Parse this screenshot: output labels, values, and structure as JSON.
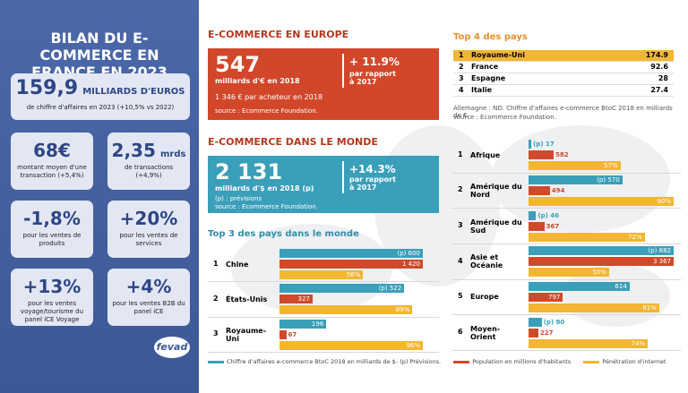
{
  "france": {
    "title": "BILAN DU E-COMMERCE EN FRANCE EN 2023",
    "cards": [
      {
        "value": "159,9",
        "unit": "MILLIARDS D'EUROS",
        "text": "de chiffre d'affaires en 2023 (+10,5% vs 2022)"
      },
      {
        "value": "68€",
        "text": "montant moyen d'une transaction (+5,4%)"
      },
      {
        "value": "2,35",
        "unit": "mrds",
        "text": "de transactions (+4,9%)"
      },
      {
        "value": "-1,8%",
        "text": "pour les ventes de produits"
      },
      {
        "value": "+20%",
        "text": "pour les ventes de services"
      },
      {
        "value": "+13%",
        "text": "pour les ventes voyage/tourisme du panel iCE Voyage"
      },
      {
        "value": "+4%",
        "text": "pour les ventes B2B du panel iCE"
      }
    ],
    "logo": "fevad"
  },
  "europe": {
    "heading": "E-COMMERCE EN EUROPE",
    "value": "547",
    "unit": "milliards d'€ en 2018",
    "growth": "+ 11.9%",
    "growth_text": "par rapport à 2017",
    "per_buyer": "1 346 € par acheteur en 2018",
    "source": "source : Ecommerce Foundation."
  },
  "world": {
    "heading": "E-COMMERCE DANS LE MONDE",
    "value": "2 131",
    "unit": "milliards d'$ en 2018 (p)",
    "growth": "+14.3%",
    "growth_text": "par rapport à 2017",
    "note": "(p) : prévisions",
    "source": "source : Ecommerce Foundation."
  },
  "top4": {
    "title": "Top 4 des pays",
    "rows": [
      [
        "1",
        "Royaume-Uni",
        "174.9"
      ],
      [
        "2",
        "France",
        "92.6"
      ],
      [
        "3",
        "Espagne",
        "28"
      ],
      [
        "4",
        "Italie",
        "27.4"
      ]
    ],
    "note": "Allemagne : ND. Chiffre d'affaires e-commerce BtoC 2018 en milliards de €.",
    "source": "source : Ecommerce Foundation."
  },
  "legend": [
    {
      "label": "Chiffre d'affaires e-commerce BtoC 2018 en milliards de $- (p) Prévisions.",
      "color": "#3a9fb9"
    },
    {
      "label": "Population en millions d'habitants",
      "color": "#cf4a2b"
    },
    {
      "label": "Pénétration d'internet",
      "color": "#f2b632"
    }
  ],
  "chart_data": [
    {
      "type": "bar",
      "title": "Top 3 des pays dans le monde",
      "ranks": [
        "1",
        "2",
        "3"
      ],
      "categories": [
        "Chine",
        "États-Unis",
        "Royaume-Uni"
      ],
      "series": [
        {
          "color": "#3a9fb9",
          "values": [
            600,
            522,
            196
          ],
          "value_labels": [
            "(p) 600",
            "(p) 522",
            "196"
          ]
        },
        {
          "color": "#cf4a2b",
          "values": [
            1420,
            327,
            67
          ],
          "value_labels": [
            "1 420",
            "327",
            "67"
          ]
        },
        {
          "color": "#f2b632",
          "values": [
            56,
            89,
            96
          ],
          "value_labels": [
            "56%",
            "89%",
            "96%"
          ]
        }
      ]
    },
    {
      "type": "bar",
      "ranks": [
        "1",
        "2",
        "3",
        "4",
        "5",
        "6"
      ],
      "categories": [
        "Afrique",
        "Amérique du Nord",
        "Amérique du Sud",
        "Asie et Océanie",
        "Europe",
        "Moyen-Orient"
      ],
      "series": [
        {
          "color": "#3a9fb9",
          "values": [
            17,
            570,
            46,
            882,
            614,
            80
          ],
          "value_labels": [
            "(p) 17",
            "(p) 570",
            "(p) 46",
            "(p) 882",
            "614",
            "(p) 80"
          ]
        },
        {
          "color": "#cf4a2b",
          "values": [
            582,
            494,
            367,
            3367,
            797,
            227
          ],
          "value_labels": [
            "582",
            "494",
            "367",
            "3 367",
            "797",
            "227"
          ]
        },
        {
          "color": "#f2b632",
          "values": [
            57,
            90,
            72,
            50,
            81,
            74
          ],
          "value_labels": [
            "57%",
            "90%",
            "72%",
            "50%",
            "81%",
            "74%"
          ]
        }
      ]
    }
  ]
}
